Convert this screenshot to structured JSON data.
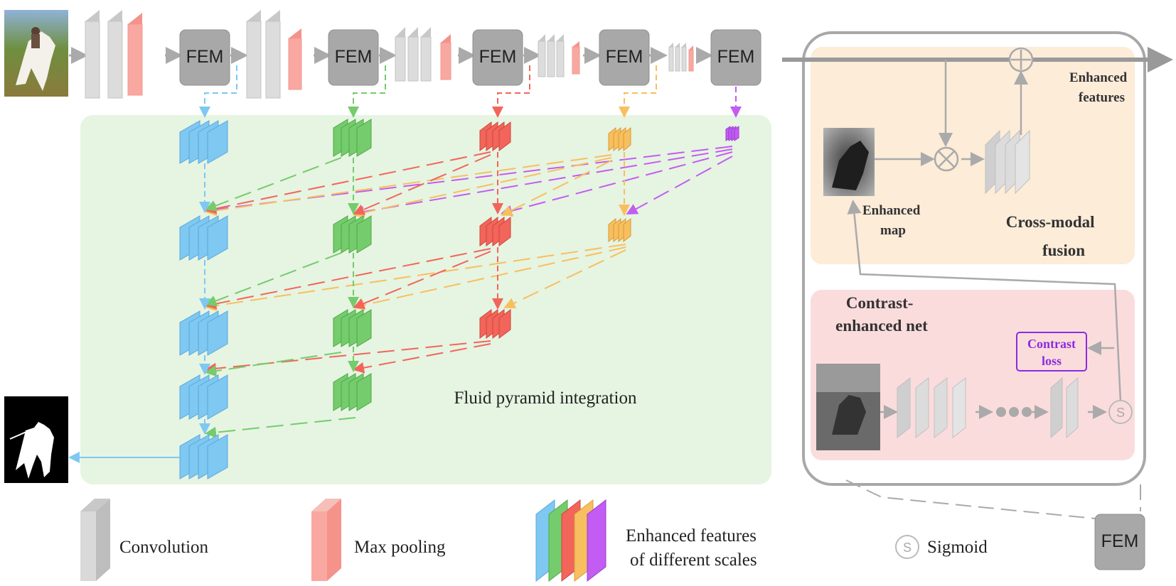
{
  "fem_label": "FEM",
  "fluid_pyramid_label": "Fluid pyramid integration",
  "right_panel": {
    "enhanced_features": [
      "Enhanced",
      "features"
    ],
    "enhanced_map": [
      "Enhanced",
      "map"
    ],
    "cross_modal_fusion": [
      "Cross-modal",
      "fusion"
    ],
    "contrast_enhanced_net": [
      "Contrast-",
      "enhanced net"
    ],
    "contrast_loss": [
      "Contrast",
      "loss"
    ],
    "sigmoid_symbol": "S",
    "plus_symbol": "+",
    "times_symbol": "×"
  },
  "legend": {
    "convolution": "Convolution",
    "max_pooling": "Max pooling",
    "enhanced_scales": [
      "Enhanced features",
      "of different scales"
    ],
    "sigmoid": "Sigmoid",
    "sigmoid_symbol": "S",
    "fem": "FEM"
  },
  "colors": {
    "blue": "#7ec8f2",
    "green": "#74cc6c",
    "red": "#f2655a",
    "orange": "#f8bf5e",
    "purple": "#c35cf2",
    "conv": "#d9d9d9",
    "pool": "#f8a8a0",
    "fem_box": "#a8a8a8",
    "green_panel": "#e6f4e2",
    "fusion_panel": "#fcecd8",
    "contrast_panel": "#fbdcdc",
    "contrast_loss": "#8a2be2"
  }
}
